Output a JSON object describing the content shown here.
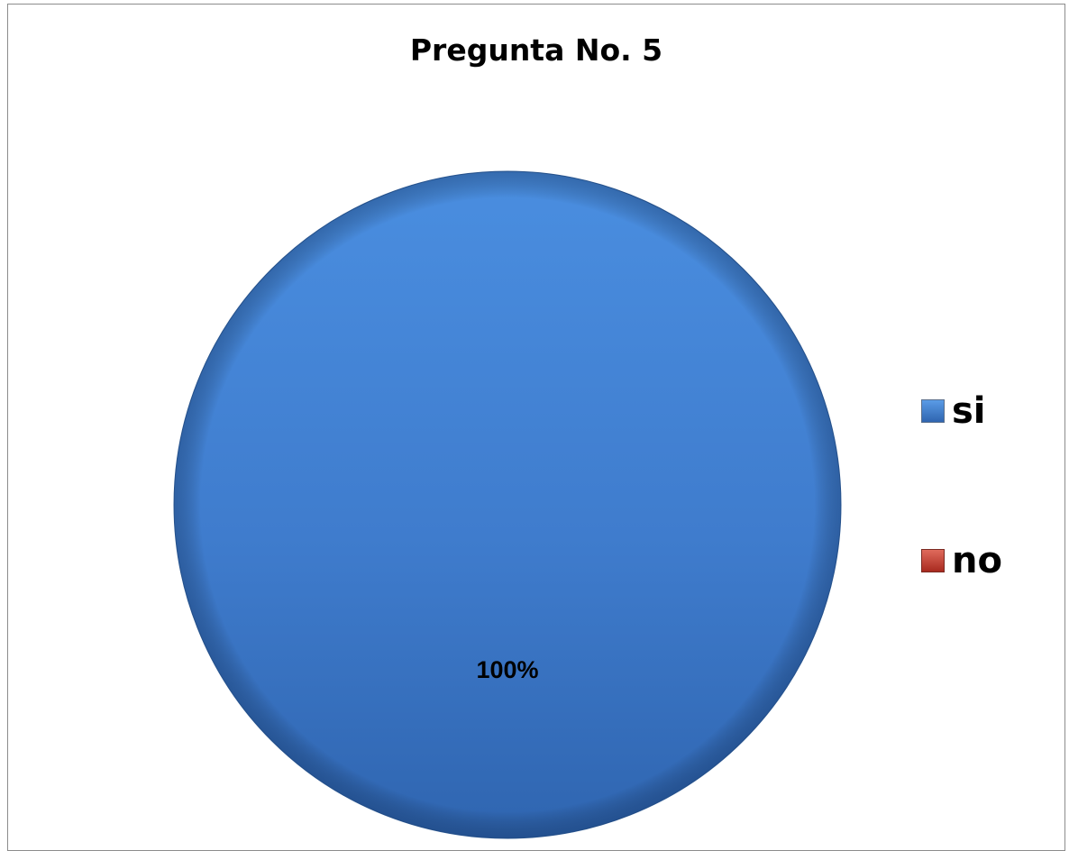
{
  "chart_data": {
    "type": "pie",
    "title": "Pregunta No. 5",
    "slices": [
      {
        "name": "si",
        "value": 100,
        "label": "100%",
        "color": "#3f7fd0"
      },
      {
        "name": "no",
        "value": 0,
        "label": "",
        "color": "#c0392b"
      }
    ],
    "legend": {
      "placement": "right",
      "entries": [
        "si",
        "no"
      ]
    }
  }
}
